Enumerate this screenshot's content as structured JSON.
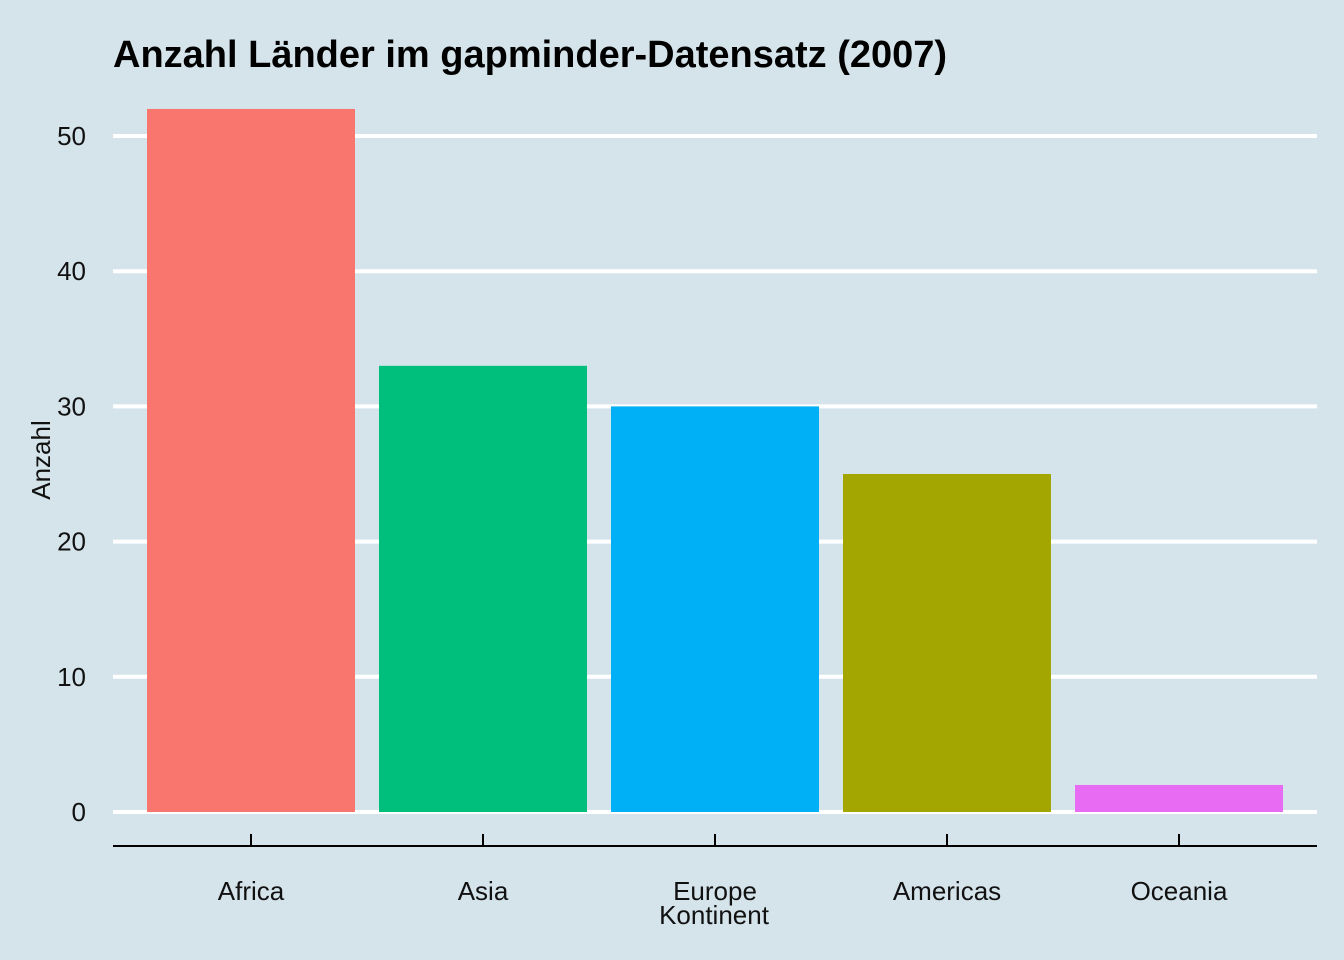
{
  "colors": {
    "background": "#d5e4eb",
    "gridline": "#ffffff",
    "axis": "#000000"
  },
  "chart_data": {
    "type": "bar",
    "title": "Anzahl Länder im gapminder-Datensatz (2007)",
    "xlabel": "Kontinent",
    "ylabel": "Anzahl",
    "categories": [
      "Africa",
      "Asia",
      "Europe",
      "Americas",
      "Oceania"
    ],
    "values": [
      52,
      33,
      30,
      25,
      2
    ],
    "bar_colors": [
      "#f8766d",
      "#00bf7d",
      "#00b0f6",
      "#a3a500",
      "#e76bf3"
    ],
    "y_ticks": [
      0,
      10,
      20,
      30,
      40,
      50
    ],
    "ylim": [
      0,
      54
    ],
    "grid": "horizontal-major",
    "legend": "none"
  }
}
